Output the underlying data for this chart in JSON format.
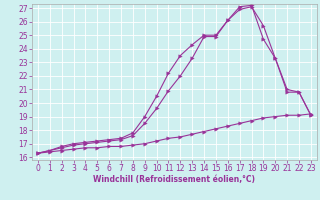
{
  "xlabel": "Windchill (Refroidissement éolien,°C)",
  "bg_color": "#cff0f0",
  "line_color": "#993399",
  "grid_color": "#ffffff",
  "xlim": [
    -0.5,
    23.5
  ],
  "ylim": [
    15.8,
    27.3
  ],
  "xticks": [
    0,
    1,
    2,
    3,
    4,
    5,
    6,
    7,
    8,
    9,
    10,
    11,
    12,
    13,
    14,
    15,
    16,
    17,
    18,
    19,
    20,
    21,
    22,
    23
  ],
  "yticks": [
    16,
    17,
    18,
    19,
    20,
    21,
    22,
    23,
    24,
    25,
    26,
    27
  ],
  "line1_x": [
    0,
    1,
    2,
    3,
    4,
    5,
    6,
    7,
    8,
    9,
    10,
    11,
    12,
    13,
    14,
    15,
    16,
    17,
    18,
    19,
    20,
    21,
    22,
    23
  ],
  "line1_y": [
    16.3,
    16.4,
    16.5,
    16.6,
    16.7,
    16.7,
    16.8,
    16.8,
    16.9,
    17.0,
    17.2,
    17.4,
    17.5,
    17.7,
    17.9,
    18.1,
    18.3,
    18.5,
    18.7,
    18.9,
    19.0,
    19.1,
    19.1,
    19.2
  ],
  "line2_x": [
    0,
    1,
    2,
    3,
    4,
    5,
    6,
    7,
    8,
    9,
    10,
    11,
    12,
    13,
    14,
    15,
    16,
    17,
    18,
    19,
    20,
    21,
    22,
    23
  ],
  "line2_y": [
    16.3,
    16.5,
    16.7,
    16.9,
    17.0,
    17.1,
    17.2,
    17.3,
    17.6,
    18.5,
    19.6,
    20.9,
    22.0,
    23.3,
    24.9,
    24.9,
    26.1,
    26.9,
    27.1,
    25.7,
    23.3,
    20.8,
    20.8,
    19.1
  ],
  "line3_x": [
    0,
    1,
    2,
    3,
    4,
    5,
    6,
    7,
    8,
    9,
    10,
    11,
    12,
    13,
    14,
    15,
    16,
    17,
    18,
    19,
    20,
    21,
    22,
    23
  ],
  "line3_y": [
    16.3,
    16.5,
    16.8,
    17.0,
    17.1,
    17.2,
    17.3,
    17.4,
    17.8,
    19.0,
    20.5,
    22.2,
    23.5,
    24.3,
    25.0,
    25.0,
    26.1,
    27.1,
    27.2,
    24.7,
    23.3,
    21.0,
    20.8,
    19.1
  ],
  "tick_fontsize": 5.5,
  "xlabel_fontsize": 5.5
}
